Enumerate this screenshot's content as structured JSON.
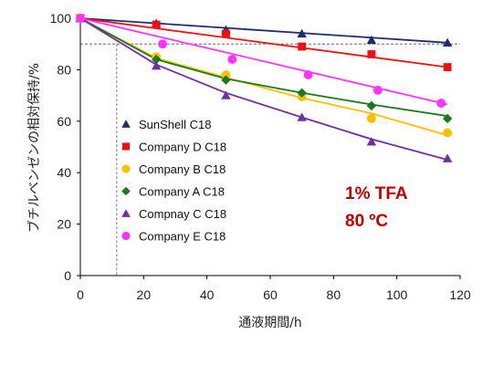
{
  "chart_data": {
    "type": "scatter",
    "xlabel": "通液期間/h",
    "ylabel": "ブチルベンゼンの相対保持/%",
    "xlim": [
      0,
      120
    ],
    "ylim": [
      0,
      100
    ],
    "xticks": [
      "0",
      "20",
      "40",
      "60",
      "80",
      "100",
      "120"
    ],
    "yticks": [
      "0",
      "20",
      "40",
      "60",
      "80",
      "100"
    ],
    "grid": false,
    "legend_position": "left-center",
    "reference_lines": [
      {
        "orientation": "horizontal",
        "value": 90
      },
      {
        "orientation": "vertical",
        "value": 11.5
      }
    ],
    "annotations": [
      "1% TFA",
      "80 ºC"
    ],
    "annotation_color": "#c00000",
    "series": [
      {
        "name": "SunShell C18",
        "marker": "triangle",
        "color": "#1f2d6b",
        "x": [
          0,
          24,
          46,
          70,
          92,
          116
        ],
        "y": [
          100,
          98,
          95.5,
          94,
          91.5,
          90.5
        ],
        "fit": [
          [
            0,
            100
          ],
          [
            116,
            90.5
          ]
        ]
      },
      {
        "name": "Company D C18",
        "marker": "square",
        "color": "#ee1111",
        "x": [
          0,
          24,
          46,
          70,
          92,
          116
        ],
        "y": [
          100,
          97.5,
          94,
          89,
          86,
          81
        ],
        "fit": [
          [
            0,
            100
          ],
          [
            116,
            81
          ]
        ]
      },
      {
        "name": "Company B C18",
        "marker": "circle",
        "color": "#ffc000",
        "x": [
          0,
          24,
          46,
          70,
          92,
          116
        ],
        "y": [
          100,
          85,
          78,
          69.5,
          61,
          55.5
        ],
        "fit": [
          [
            0,
            100
          ],
          [
            24,
            84.5
          ],
          [
            46,
            77
          ],
          [
            70,
            69
          ],
          [
            92,
            63
          ],
          [
            116,
            54.5
          ]
        ]
      },
      {
        "name": "Company A C18",
        "marker": "diamond",
        "color": "#1a7a1a",
        "x": [
          0,
          24,
          46,
          70,
          92,
          116
        ],
        "y": [
          100,
          84,
          76,
          71,
          66,
          61
        ],
        "fit": [
          [
            0,
            100
          ],
          [
            24,
            84
          ],
          [
            46,
            76.5
          ],
          [
            70,
            71
          ],
          [
            92,
            66.5
          ],
          [
            116,
            62
          ]
        ]
      },
      {
        "name": "Compnay C C18",
        "marker": "triangle",
        "color": "#7030a0",
        "x": [
          0,
          24,
          46,
          70,
          92,
          116
        ],
        "y": [
          100,
          81.5,
          70,
          61.5,
          52,
          45.5
        ],
        "fit": [
          [
            0,
            100
          ],
          [
            24,
            82
          ],
          [
            46,
            71
          ],
          [
            70,
            61.5
          ],
          [
            92,
            53
          ],
          [
            116,
            45
          ]
        ]
      },
      {
        "name": "Company E C18",
        "marker": "circle",
        "color": "#ff33ff",
        "x": [
          0,
          26,
          48,
          72,
          94,
          114
        ],
        "y": [
          100,
          90,
          84,
          78,
          72,
          67
        ],
        "fit": [
          [
            0,
            100
          ],
          [
            116,
            66.5
          ]
        ]
      }
    ]
  }
}
